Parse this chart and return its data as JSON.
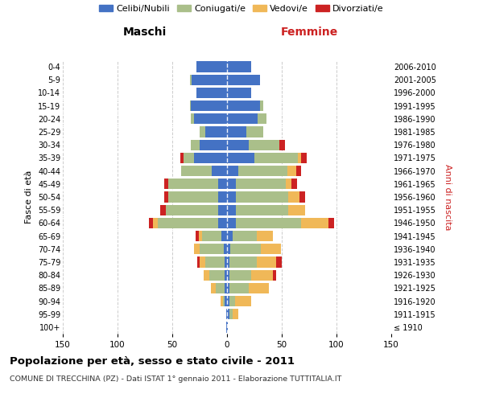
{
  "age_groups": [
    "100+",
    "95-99",
    "90-94",
    "85-89",
    "80-84",
    "75-79",
    "70-74",
    "65-69",
    "60-64",
    "55-59",
    "50-54",
    "45-49",
    "40-44",
    "35-39",
    "30-34",
    "25-29",
    "20-24",
    "15-19",
    "10-14",
    "5-9",
    "0-4"
  ],
  "birth_years": [
    "≤ 1910",
    "1911-1915",
    "1916-1920",
    "1921-1925",
    "1926-1930",
    "1931-1935",
    "1936-1940",
    "1941-1945",
    "1946-1950",
    "1951-1955",
    "1956-1960",
    "1961-1965",
    "1966-1970",
    "1971-1975",
    "1976-1980",
    "1981-1985",
    "1986-1990",
    "1991-1995",
    "1996-2000",
    "2001-2005",
    "2006-2010"
  ],
  "colors": {
    "single": "#4472C4",
    "married": "#AABF8A",
    "widowed": "#F0B858",
    "divorced": "#CC2222"
  },
  "males": {
    "single": [
      1,
      1,
      2,
      2,
      2,
      2,
      3,
      5,
      8,
      8,
      8,
      8,
      14,
      30,
      25,
      20,
      30,
      33,
      28,
      32,
      28
    ],
    "married": [
      0,
      0,
      2,
      8,
      14,
      18,
      22,
      18,
      55,
      48,
      46,
      46,
      28,
      10,
      8,
      5,
      3,
      1,
      0,
      2,
      0
    ],
    "widowed": [
      0,
      0,
      2,
      5,
      5,
      5,
      5,
      3,
      5,
      0,
      0,
      0,
      0,
      0,
      0,
      0,
      0,
      0,
      0,
      0,
      0
    ],
    "divorced": [
      0,
      0,
      0,
      0,
      0,
      2,
      0,
      3,
      3,
      5,
      3,
      3,
      0,
      3,
      0,
      0,
      0,
      0,
      0,
      0,
      0
    ]
  },
  "females": {
    "single": [
      1,
      2,
      2,
      2,
      2,
      2,
      3,
      5,
      8,
      8,
      8,
      8,
      10,
      25,
      20,
      18,
      28,
      30,
      22,
      30,
      22
    ],
    "married": [
      0,
      3,
      5,
      18,
      20,
      25,
      28,
      22,
      60,
      48,
      48,
      46,
      45,
      40,
      28,
      15,
      8,
      3,
      0,
      0,
      0
    ],
    "widowed": [
      0,
      5,
      15,
      18,
      20,
      18,
      18,
      15,
      25,
      15,
      10,
      5,
      8,
      3,
      0,
      0,
      0,
      0,
      0,
      0,
      0
    ],
    "divorced": [
      0,
      0,
      0,
      0,
      3,
      5,
      0,
      0,
      5,
      0,
      5,
      5,
      5,
      5,
      5,
      0,
      0,
      0,
      0,
      0,
      0
    ]
  },
  "title": "Popolazione per età, sesso e stato civile - 2011",
  "subtitle": "COMUNE DI TRECCHINA (PZ) - Dati ISTAT 1° gennaio 2011 - Elaborazione TUTTITALIA.IT",
  "xlabel_left": "Maschi",
  "xlabel_right": "Femmine",
  "ylabel_left": "Fasce di età",
  "ylabel_right": "Anni di nascita",
  "xlim": 150,
  "legend_labels": [
    "Celibi/Nubili",
    "Coniugati/e",
    "Vedovi/e",
    "Divorziati/e"
  ],
  "background_color": "#ffffff",
  "grid_color": "#cccccc"
}
